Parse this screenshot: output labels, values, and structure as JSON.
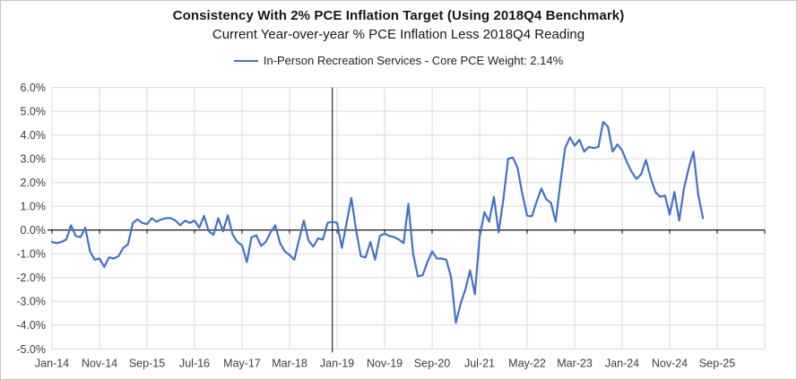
{
  "title": "Consistency With 2% PCE Inflation Target (Using 2018Q4 Benchmark)",
  "subtitle": "Current Year-over-year % PCE Inflation Less 2018Q4 Reading",
  "legend": {
    "label": "In-Person Recreation Services - Core PCE Weight: 2.14%",
    "line_color": "#4472C4"
  },
  "chart_data": {
    "type": "line",
    "title": "Consistency With 2% PCE Inflation Target (Using 2018Q4 Benchmark)",
    "subtitle": "Current Year-over-year % PCE Inflation Less 2018Q4 Reading",
    "series_name": "In-Person Recreation Services - Core PCE Weight: 2.14%",
    "start_month": "Jan-14",
    "end_month": "Jun-25",
    "frequency": "monthly",
    "unit": "percent",
    "values": [
      -0.5,
      -0.55,
      -0.5,
      -0.4,
      0.2,
      -0.25,
      -0.3,
      0.1,
      -0.9,
      -1.25,
      -1.2,
      -1.55,
      -1.15,
      -1.2,
      -1.1,
      -0.75,
      -0.6,
      0.3,
      0.45,
      0.3,
      0.25,
      0.5,
      0.35,
      0.45,
      0.5,
      0.5,
      0.4,
      0.2,
      0.4,
      0.3,
      0.4,
      0.1,
      0.6,
      -0.05,
      -0.2,
      0.5,
      -0.05,
      0.62,
      -0.18,
      -0.5,
      -0.65,
      -1.35,
      -0.3,
      -0.22,
      -0.67,
      -0.5,
      -0.1,
      0.2,
      -0.55,
      -0.9,
      -1.05,
      -1.25,
      -0.4,
      0.4,
      -0.45,
      -0.7,
      -0.35,
      -0.4,
      0.3,
      0.35,
      0.3,
      -0.75,
      0.3,
      1.35,
      0.0,
      -1.1,
      -1.15,
      -0.5,
      -1.25,
      -0.25,
      -0.15,
      -0.25,
      -0.3,
      -0.4,
      -0.55,
      1.1,
      -1.0,
      -1.95,
      -1.9,
      -1.35,
      -0.9,
      -1.2,
      -1.2,
      -1.25,
      -2.0,
      -3.9,
      -3.1,
      -2.5,
      -1.7,
      -2.7,
      -0.3,
      0.75,
      0.35,
      1.4,
      -0.1,
      1.3,
      3.0,
      3.05,
      2.6,
      1.5,
      0.6,
      0.58,
      1.2,
      1.75,
      1.3,
      1.15,
      0.35,
      2.0,
      3.45,
      3.9,
      3.55,
      3.8,
      3.3,
      3.5,
      3.45,
      3.5,
      4.55,
      4.35,
      3.3,
      3.6,
      3.35,
      2.85,
      2.45,
      2.15,
      2.35,
      2.95,
      2.2,
      1.6,
      1.4,
      1.45,
      0.65,
      1.6,
      0.4,
      1.75,
      2.6,
      3.3,
      1.5,
      0.5
    ],
    "x_tick_labels": [
      "Jan-14",
      "Nov-14",
      "Sep-15",
      "Jul-16",
      "May-17",
      "Mar-18",
      "Jan-19",
      "Nov-19",
      "Sep-20",
      "Jul-21",
      "May-22",
      "Mar-23",
      "Jan-24",
      "Nov-24",
      "Sep-25"
    ],
    "x_tick_interval_months": 10,
    "y_tick_labels": [
      "6.0%",
      "5.0%",
      "4.0%",
      "3.0%",
      "2.0%",
      "1.0%",
      "0.0%",
      "-1.0%",
      "-2.0%",
      "-3.0%",
      "-4.0%",
      "-5.0%"
    ],
    "ylim": [
      -5,
      6
    ],
    "grid": true,
    "legend_position": "top",
    "zero_line": true,
    "benchmark_vline_month": "Dec-18",
    "benchmark_vline_index": 59,
    "line_color": "#4472C4",
    "grid_color": "#D9D9D9",
    "axis_color": "#000000"
  }
}
